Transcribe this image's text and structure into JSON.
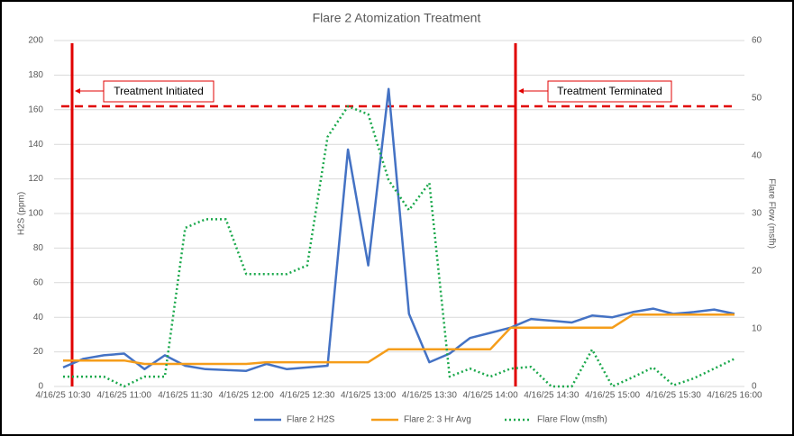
{
  "chart_data": {
    "type": "line",
    "title": "Flare 2 Atomization Treatment",
    "y_label": "H2S (ppm)",
    "y2_label": "Flare Flow (msfh)",
    "categories": [
      "4/16/25 10:30",
      null,
      null,
      "4/16/25 11:00",
      null,
      null,
      "4/16/25 11:30",
      null,
      null,
      "4/16/25 12:00",
      null,
      null,
      "4/16/25 12:30",
      null,
      null,
      "4/16/25 13:00",
      null,
      null,
      "4/16/25 13:30",
      null,
      null,
      "4/16/25 14:00",
      null,
      null,
      "4/16/25 14:30",
      null,
      null,
      "4/16/25 15:00",
      null,
      null,
      "4/16/25 15:30",
      null,
      null,
      "4/16/25 16:00"
    ],
    "series": [
      {
        "name": "Flare 2 H2S",
        "color": "#4472c4",
        "style": "solid",
        "values": [
          11,
          16,
          18,
          19,
          10,
          18,
          12,
          10,
          9.5,
          9,
          13,
          10,
          11,
          12,
          137,
          70,
          172,
          42,
          14,
          19,
          28,
          31,
          34,
          39,
          38,
          37,
          41,
          40,
          43,
          45,
          42,
          43,
          44.5,
          42
        ]
      },
      {
        "name": "Flare 2: 3 Hr Avg",
        "color": "#f59d1a",
        "style": "solid",
        "values": [
          15,
          15,
          15,
          15,
          13,
          13,
          13,
          13,
          13,
          13,
          14,
          14,
          14,
          14,
          14,
          14,
          21.5,
          21.5,
          21.5,
          21.5,
          21.5,
          21.5,
          34,
          34,
          34,
          34,
          34,
          34,
          41.5,
          41.5,
          41.5,
          41.5,
          41.5,
          41.5
        ]
      },
      {
        "name": "Flare Flow (msfh)",
        "color": "#1aa84b",
        "style": "dotted",
        "axis": "y2",
        "values": [
          1.7,
          1.7,
          1.7,
          0,
          1.7,
          1.7,
          27.5,
          29,
          29,
          19.5,
          19.5,
          19.5,
          21,
          43.3,
          48.6,
          47.2,
          35.8,
          30.6,
          35.3,
          1.7,
          3.1,
          1.7,
          3.1,
          3.4,
          0,
          0,
          6.4,
          0,
          1.6,
          3.3,
          0.2,
          1.4,
          3.1,
          4.8
        ]
      }
    ],
    "ylim": [
      0,
      200
    ],
    "yticks": [
      0,
      20,
      40,
      60,
      80,
      100,
      120,
      140,
      160,
      180,
      200
    ],
    "y2lim": [
      0,
      60
    ],
    "y2ticks": [
      0,
      10,
      20,
      30,
      40,
      50,
      60
    ],
    "grid": true,
    "legend": "bottom",
    "threshold": 162,
    "annotations": [
      "Treatment Initiated",
      "Treatment Terminated"
    ]
  }
}
